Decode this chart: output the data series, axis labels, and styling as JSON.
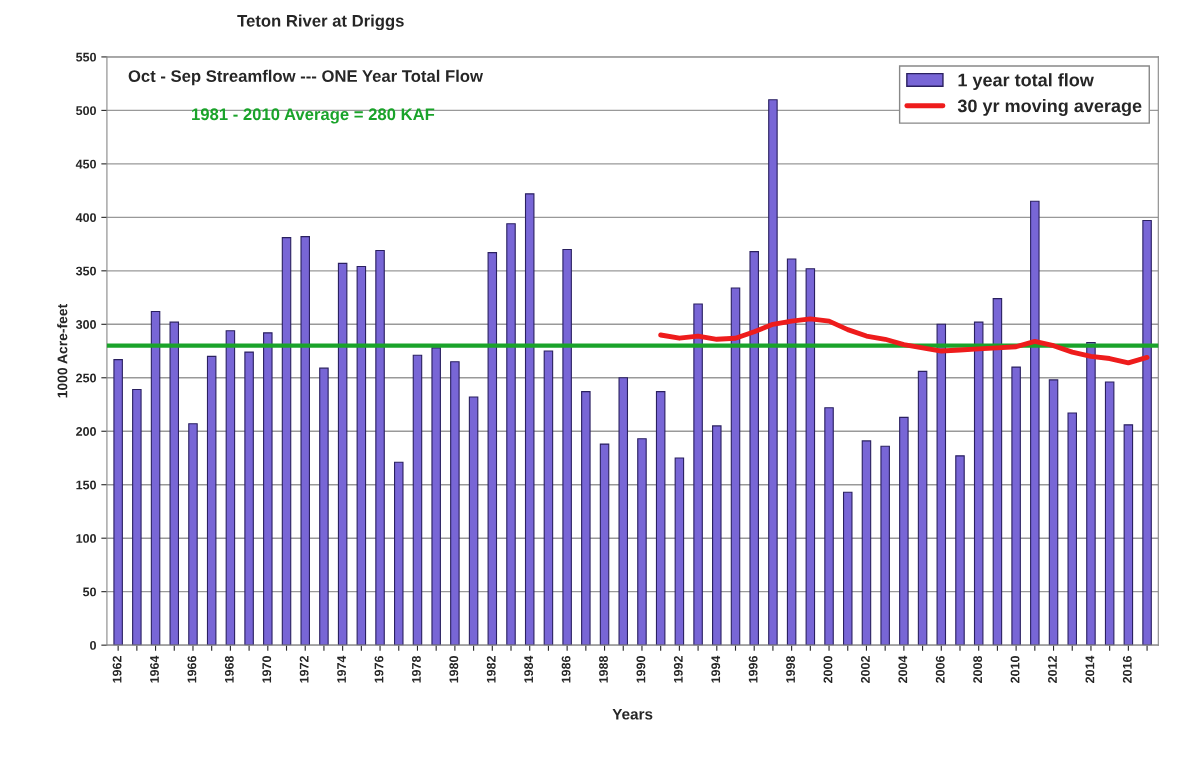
{
  "chart_data": {
    "type": "bar",
    "title": "Teton River at Driggs",
    "subtitle": "Oct - Sep Streamflow --- ONE Year Total Flow",
    "xlabel": "Years",
    "ylabel": "1000 Acre-feet",
    "categories": [
      "1962",
      null,
      "1964",
      null,
      "1966",
      null,
      "1968",
      null,
      "1970",
      null,
      "1972",
      null,
      "1974",
      null,
      "1976",
      null,
      "1978",
      null,
      "1980",
      null,
      "1982",
      null,
      "1984",
      null,
      "1986",
      null,
      "1988",
      null,
      "1990",
      null,
      "1992",
      null,
      "1994",
      null,
      "1996",
      null,
      "1998",
      null,
      "2000",
      null,
      "2002",
      null,
      "2004",
      null,
      "2006",
      null,
      "2008",
      null,
      "2010",
      null,
      "2012",
      null,
      "2014",
      null,
      "2016",
      null
    ],
    "series": [
      {
        "name": "1 year total flow",
        "color": "#7866d6",
        "values": [
          267,
          239,
          312,
          302,
          207,
          270,
          294,
          274,
          292,
          381,
          382,
          259,
          357,
          354,
          369,
          171,
          271,
          278,
          265,
          232,
          367,
          394,
          422,
          275,
          370,
          237,
          188,
          250,
          193,
          237,
          175,
          319,
          205,
          334,
          368,
          510,
          361,
          352,
          222,
          143,
          191,
          186,
          213,
          256,
          300,
          177,
          302,
          324,
          260,
          415,
          248,
          217,
          283,
          246,
          206,
          397
        ]
      },
      {
        "name": "30 yr moving average",
        "type": "line",
        "color": "#ee1c1c",
        "values": [
          null,
          null,
          null,
          null,
          null,
          null,
          null,
          null,
          null,
          null,
          null,
          null,
          null,
          null,
          null,
          null,
          null,
          null,
          null,
          null,
          null,
          null,
          null,
          null,
          null,
          null,
          null,
          null,
          null,
          290,
          287,
          289,
          286,
          287,
          293,
          300,
          303,
          305,
          303,
          295,
          289,
          286,
          281,
          278,
          275,
          276,
          277,
          278,
          279,
          284,
          280,
          274,
          270,
          268,
          264,
          269
        ]
      }
    ],
    "ylim": [
      0,
      550
    ],
    "yticks": [
      0,
      50,
      100,
      150,
      200,
      250,
      300,
      350,
      400,
      450,
      500,
      550
    ],
    "ref_lines": [
      {
        "axis": "y",
        "value": 280,
        "label": "1981 - 2010 Average = 280 KAF",
        "color": "#1aa32a"
      }
    ],
    "grid": "y",
    "legend": "top right"
  }
}
